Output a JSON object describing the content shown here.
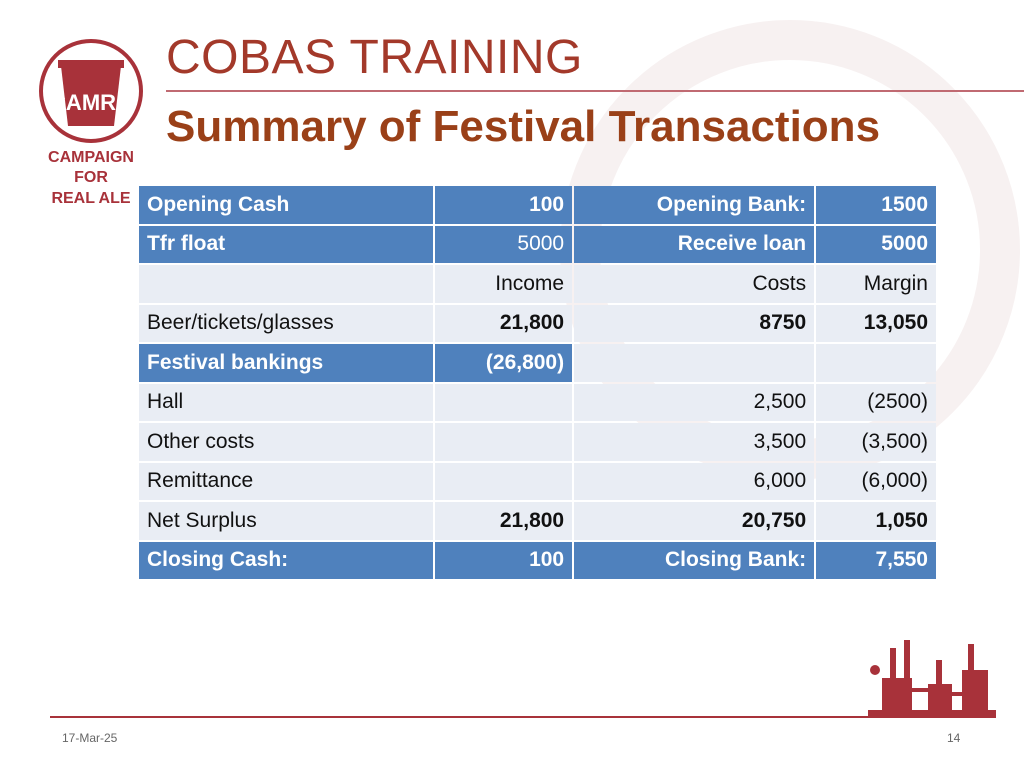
{
  "slide": {
    "title": "COBAS TRAINING",
    "subtitle": "Summary of Festival Transactions",
    "date": "17-Mar-25",
    "page_number": "14"
  },
  "logo": {
    "mark_text": "CAMRA",
    "line1": "CAMPAIGN",
    "line2": "FOR",
    "line3": "REAL ALE"
  },
  "colors": {
    "title": "#a3392a",
    "subtitle": "#9a4018",
    "header_fill": "#4f81bd",
    "row_fill": "#e9edf4",
    "brand_red": "#a8323a"
  },
  "table": {
    "rows": [
      [
        "Opening Cash",
        "100",
        "Opening Bank:",
        "1500"
      ],
      [
        "Tfr float",
        "5000",
        "Receive loan",
        "5000"
      ],
      [
        "",
        "Income",
        "Costs",
        "Margin"
      ],
      [
        "Beer/tickets/glasses",
        "21,800",
        "8750",
        "13,050"
      ],
      [
        "Festival bankings",
        "(26,800)",
        "",
        ""
      ],
      [
        "Hall",
        "",
        "2,500",
        "(2500)"
      ],
      [
        "Other costs",
        "",
        "3,500",
        "(3,500)"
      ],
      [
        "Remittance",
        "",
        "6,000",
        "(6,000)"
      ],
      [
        "Net Surplus",
        "21,800",
        "20,750",
        "1,050"
      ],
      [
        "Closing Cash:",
        "100",
        "Closing Bank:",
        "7,550"
      ]
    ]
  }
}
